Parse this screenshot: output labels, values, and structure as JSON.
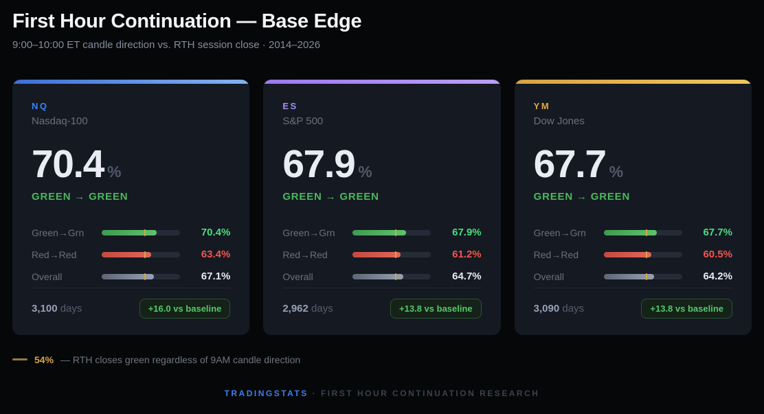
{
  "page": {
    "title": "First Hour Continuation — Base Edge",
    "subtitle": "9:00–10:00 ET candle direction vs. RTH session close · 2014–2026"
  },
  "baseline": {
    "pct": 54,
    "legend_value": "54%",
    "legend_text": "— RTH closes green regardless of 9AM candle direction"
  },
  "cards": [
    {
      "symbol": "NQ",
      "symbol_color": "#3b82f6",
      "accent_from": "#3c6fd6",
      "accent_to": "#83b4f0",
      "name": "Nasdaq-100",
      "headline_value": "70.4",
      "headline_unit": "%",
      "direction_label": "GREEN → GREEN",
      "rows": [
        {
          "label": "Green→Grn",
          "value": "70.4%",
          "pct": 70.4,
          "color": "green"
        },
        {
          "label": "Red→Red",
          "value": "63.4%",
          "pct": 63.4,
          "color": "red"
        },
        {
          "label": "Overall",
          "value": "67.1%",
          "pct": 67.1,
          "color": "gray"
        }
      ],
      "days_value": "3,100",
      "days_label": "days",
      "badge": "+16.0 vs baseline"
    },
    {
      "symbol": "ES",
      "symbol_color": "#a78bfa",
      "accent_from": "#9b79ee",
      "accent_to": "#bb9ff8",
      "name": "S&P 500",
      "headline_value": "67.9",
      "headline_unit": "%",
      "direction_label": "GREEN → GREEN",
      "rows": [
        {
          "label": "Green→Grn",
          "value": "67.9%",
          "pct": 67.9,
          "color": "green"
        },
        {
          "label": "Red→Red",
          "value": "61.2%",
          "pct": 61.2,
          "color": "red"
        },
        {
          "label": "Overall",
          "value": "64.7%",
          "pct": 64.7,
          "color": "gray"
        }
      ],
      "days_value": "2,962",
      "days_label": "days",
      "badge": "+13.8 vs baseline"
    },
    {
      "symbol": "YM",
      "symbol_color": "#e0ac3d",
      "accent_from": "#d9a240",
      "accent_to": "#eec85d",
      "name": "Dow Jones",
      "headline_value": "67.7",
      "headline_unit": "%",
      "direction_label": "GREEN → GREEN",
      "rows": [
        {
          "label": "Green→Grn",
          "value": "67.7%",
          "pct": 67.7,
          "color": "green"
        },
        {
          "label": "Red→Red",
          "value": "60.5%",
          "pct": 60.5,
          "color": "red"
        },
        {
          "label": "Overall",
          "value": "64.2%",
          "pct": 64.2,
          "color": "gray"
        }
      ],
      "days_value": "3,090",
      "days_label": "days",
      "badge": "+13.8 vs baseline"
    }
  ],
  "footer": {
    "brand": "TRADINGSTATS",
    "separator": "·",
    "text": "FIRST HOUR CONTINUATION RESEARCH"
  },
  "chart_data": {
    "type": "bar",
    "title": "First Hour Continuation — Base Edge",
    "subtitle": "9:00–10:00 ET candle direction vs. RTH session close · 2014–2026",
    "categories": [
      "Green→Grn",
      "Red→Red",
      "Overall"
    ],
    "series": [
      {
        "name": "NQ Nasdaq-100",
        "values": [
          70.4,
          63.4,
          67.1
        ],
        "days": 3100,
        "edge_vs_baseline": 16.0
      },
      {
        "name": "ES S&P 500",
        "values": [
          67.9,
          61.2,
          64.7
        ],
        "days": 2962,
        "edge_vs_baseline": 13.8
      },
      {
        "name": "YM Dow Jones",
        "values": [
          67.7,
          60.5,
          64.2
        ],
        "days": 3090,
        "edge_vs_baseline": 13.8
      }
    ],
    "xlim": [
      0,
      100
    ],
    "baseline": {
      "value": 54,
      "label": "RTH closes green regardless of 9AM candle direction"
    },
    "legend_position": "bottom"
  }
}
